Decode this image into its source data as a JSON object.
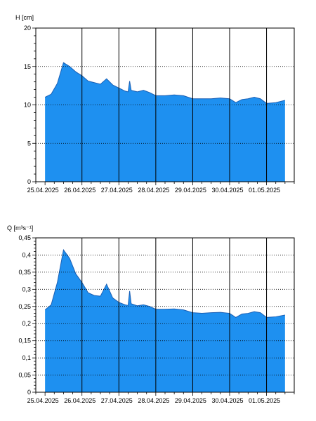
{
  "colors": {
    "fill": "#1e90f0",
    "outline": "#1a5fb4",
    "frame": "#000000",
    "grid": "#000000"
  },
  "chart_data": [
    {
      "type": "area",
      "ylabel": "H [cm]",
      "ylim": [
        0,
        20
      ],
      "yticks": [
        0,
        5,
        10,
        15,
        20
      ],
      "ytick_labels": [
        "0",
        "5",
        "10",
        "15",
        "20"
      ],
      "minor_ytick_step": 1,
      "xlim": [
        "2025-04-24T18:00",
        "2025-05-01T18:00"
      ],
      "xticks": [
        "2025-04-25",
        "2025-04-26",
        "2025-04-27",
        "2025-04-28",
        "2025-04-29",
        "2025-04-30",
        "2025-05-01"
      ],
      "xtick_labels": [
        "25.04.2025",
        "26.04.2025",
        "27.04.2025",
        "28.04.2025",
        "29.04.2025",
        "30.04.2025",
        "01.05.2025"
      ],
      "vertical_lines": [
        "2025-04-26",
        "2025-04-27",
        "2025-04-28",
        "2025-04-29",
        "2025-04-30",
        "2025-05-01"
      ],
      "horizontal_grid": "dotted",
      "x": [
        "2025-04-25T00:00",
        "2025-04-25T04:00",
        "2025-04-25T08:00",
        "2025-04-25T12:00",
        "2025-04-25T16:00",
        "2025-04-25T20:00",
        "2025-04-26T00:00",
        "2025-04-26T04:00",
        "2025-04-26T08:00",
        "2025-04-26T12:00",
        "2025-04-26T16:00",
        "2025-04-26T20:00",
        "2025-04-27T00:00",
        "2025-04-27T04:00",
        "2025-04-27T06:00",
        "2025-04-27T07:00",
        "2025-04-27T08:00",
        "2025-04-27T12:00",
        "2025-04-27T16:00",
        "2025-04-27T20:00",
        "2025-04-28T00:00",
        "2025-04-28T06:00",
        "2025-04-28T12:00",
        "2025-04-28T18:00",
        "2025-04-29T00:00",
        "2025-04-29T06:00",
        "2025-04-29T12:00",
        "2025-04-29T18:00",
        "2025-04-30T00:00",
        "2025-04-30T04:00",
        "2025-04-30T08:00",
        "2025-04-30T12:00",
        "2025-04-30T16:00",
        "2025-04-30T20:00",
        "2025-05-01T00:00",
        "2025-05-01T06:00",
        "2025-05-01T12:00"
      ],
      "values": [
        11.0,
        11.4,
        12.8,
        15.5,
        15.0,
        14.3,
        13.8,
        13.1,
        12.9,
        12.7,
        13.4,
        12.6,
        12.2,
        11.8,
        11.7,
        13.1,
        11.9,
        11.7,
        11.9,
        11.6,
        11.2,
        11.2,
        11.3,
        11.2,
        10.8,
        10.8,
        10.8,
        10.9,
        10.8,
        10.3,
        10.7,
        10.8,
        11.0,
        10.8,
        10.2,
        10.3,
        10.6
      ]
    },
    {
      "type": "area",
      "ylabel": "Q [m³s⁻¹]",
      "ylim": [
        0,
        0.45
      ],
      "yticks": [
        0,
        0.05,
        0.1,
        0.15,
        0.2,
        0.25,
        0.3,
        0.35,
        0.4,
        0.45
      ],
      "ytick_labels": [
        "0",
        "0,05",
        "0,1",
        "0,15",
        "0,2",
        "0,25",
        "0,3",
        "0,35",
        "0,4",
        "0,45"
      ],
      "minor_ytick_step": 0.01,
      "xlim": [
        "2025-04-24T18:00",
        "2025-05-01T18:00"
      ],
      "xticks": [
        "2025-04-25",
        "2025-04-26",
        "2025-04-27",
        "2025-04-28",
        "2025-04-29",
        "2025-04-30",
        "2025-05-01"
      ],
      "xtick_labels": [
        "25.04.2025",
        "26.04.2025",
        "27.04.2025",
        "28.04.2025",
        "29.04.2025",
        "30.04.2025",
        "01.05.2025"
      ],
      "vertical_lines": [
        "2025-04-26",
        "2025-04-27",
        "2025-04-28",
        "2025-04-29",
        "2025-04-30",
        "2025-05-01"
      ],
      "horizontal_grid": "dotted",
      "x": [
        "2025-04-25T00:00",
        "2025-04-25T04:00",
        "2025-04-25T08:00",
        "2025-04-25T12:00",
        "2025-04-25T16:00",
        "2025-04-25T20:00",
        "2025-04-26T00:00",
        "2025-04-26T04:00",
        "2025-04-26T08:00",
        "2025-04-26T12:00",
        "2025-04-26T16:00",
        "2025-04-26T20:00",
        "2025-04-27T00:00",
        "2025-04-27T04:00",
        "2025-04-27T06:00",
        "2025-04-27T07:00",
        "2025-04-27T08:00",
        "2025-04-27T12:00",
        "2025-04-27T16:00",
        "2025-04-27T20:00",
        "2025-04-28T00:00",
        "2025-04-28T06:00",
        "2025-04-28T12:00",
        "2025-04-28T18:00",
        "2025-04-29T00:00",
        "2025-04-29T06:00",
        "2025-04-29T12:00",
        "2025-04-29T18:00",
        "2025-04-30T00:00",
        "2025-04-30T04:00",
        "2025-04-30T08:00",
        "2025-04-30T12:00",
        "2025-04-30T16:00",
        "2025-04-30T20:00",
        "2025-05-01T00:00",
        "2025-05-01T06:00",
        "2025-05-01T12:00"
      ],
      "values": [
        0.24,
        0.255,
        0.32,
        0.415,
        0.39,
        0.345,
        0.32,
        0.29,
        0.282,
        0.28,
        0.315,
        0.275,
        0.262,
        0.255,
        0.253,
        0.295,
        0.258,
        0.252,
        0.255,
        0.25,
        0.242,
        0.242,
        0.243,
        0.24,
        0.232,
        0.23,
        0.232,
        0.233,
        0.23,
        0.218,
        0.228,
        0.23,
        0.235,
        0.232,
        0.218,
        0.22,
        0.225
      ]
    }
  ]
}
